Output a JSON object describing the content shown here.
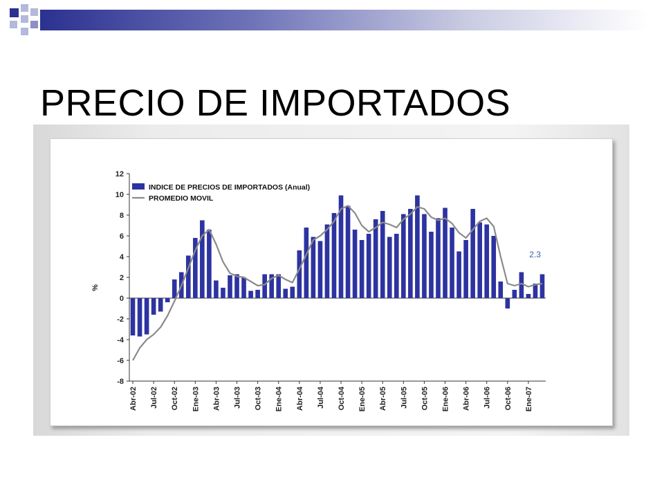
{
  "slide": {
    "title": "PRECIO DE IMPORTADOS",
    "accent_color": "#2b3190",
    "squares_color": "#2b3190"
  },
  "chart_data": {
    "type": "bar",
    "ylabel": "%",
    "ylim": [
      -8,
      12
    ],
    "yticks": [
      -8,
      -6,
      -4,
      -2,
      0,
      2,
      4,
      6,
      8,
      10,
      12
    ],
    "grid": false,
    "legend_position": "top-left",
    "categories": [
      "Abr-02",
      "May-02",
      "Jun-02",
      "Jul-02",
      "Ago-02",
      "Sep-02",
      "Oct-02",
      "Nov-02",
      "Dic-02",
      "Ene-03",
      "Feb-03",
      "Mar-03",
      "Abr-03",
      "May-03",
      "Jun-03",
      "Jul-03",
      "Ago-03",
      "Sep-03",
      "Oct-03",
      "Nov-03",
      "Dic-03",
      "Ene-04",
      "Feb-04",
      "Mar-04",
      "Abr-04",
      "May-04",
      "Jun-04",
      "Jul-04",
      "Ago-04",
      "Sep-04",
      "Oct-04",
      "Nov-04",
      "Dic-04",
      "Ene-05",
      "Feb-05",
      "Mar-05",
      "Abr-05",
      "May-05",
      "Jun-05",
      "Jul-05",
      "Ago-05",
      "Sep-05",
      "Oct-05",
      "Nov-05",
      "Dic-05",
      "Ene-06",
      "Feb-06",
      "Mar-06",
      "Abr-06",
      "May-06",
      "Jun-06",
      "Jul-06",
      "Ago-06",
      "Sep-06",
      "Oct-06",
      "Nov-06",
      "Dic-06",
      "Ene-07",
      "Feb-07",
      "Mar-07"
    ],
    "xtick_labels": [
      "Abr-02",
      "Jul-02",
      "Oct-02",
      "Ene-03",
      "Abr-03",
      "Jul-03",
      "Oct-03",
      "Ene-04",
      "Abr-04",
      "Jul-04",
      "Oct-04",
      "Ene-05",
      "Abr-05",
      "Jul-05",
      "Oct-05",
      "Ene-06",
      "Abr-06",
      "Jul-06",
      "Oct-06",
      "Ene-07"
    ],
    "series": [
      {
        "name": "INDICE DE PRECIOS DE IMPORTADOS (Anual)",
        "kind": "bar",
        "color": "#2d33a0",
        "values": [
          -3.6,
          -3.7,
          -3.5,
          -1.6,
          -1.3,
          -0.4,
          1.8,
          2.5,
          4.1,
          5.8,
          7.5,
          6.6,
          1.7,
          1.0,
          2.2,
          2.3,
          2.0,
          0.7,
          0.8,
          2.3,
          2.3,
          2.3,
          0.9,
          1.1,
          4.6,
          6.8,
          5.9,
          5.5,
          7.1,
          8.2,
          9.9,
          8.9,
          6.6,
          5.6,
          6.2,
          7.6,
          8.4,
          5.9,
          6.2,
          8.1,
          8.6,
          9.9,
          8.1,
          6.4,
          7.7,
          8.7,
          6.8,
          4.5,
          5.6,
          8.6,
          7.3,
          7.1,
          6.0,
          1.6,
          -1.0,
          0.8,
          2.5,
          0.4,
          1.4,
          2.3
        ]
      },
      {
        "name": "PROMEDIO MOVIL",
        "kind": "line",
        "color": "#8a8a8a",
        "values": [
          -6.0,
          -4.8,
          -4.0,
          -3.5,
          -2.8,
          -1.7,
          -0.3,
          1.2,
          2.9,
          4.6,
          6.0,
          6.6,
          5.2,
          3.5,
          2.4,
          2.1,
          2.0,
          1.6,
          1.2,
          1.3,
          1.9,
          2.2,
          1.8,
          1.5,
          2.8,
          4.2,
          5.6,
          6.0,
          6.6,
          7.4,
          8.6,
          8.9,
          8.2,
          7.0,
          6.4,
          6.8,
          7.3,
          7.1,
          6.8,
          7.6,
          8.1,
          8.8,
          8.6,
          7.8,
          7.5,
          7.7,
          7.2,
          6.3,
          5.8,
          6.6,
          7.4,
          7.7,
          6.9,
          4.0,
          1.4,
          1.2,
          1.4,
          1.1,
          1.3,
          1.4
        ]
      }
    ],
    "annotations": [
      {
        "text": "2.3",
        "at_category": "Mar-07",
        "at_value": 4.2
      }
    ]
  }
}
